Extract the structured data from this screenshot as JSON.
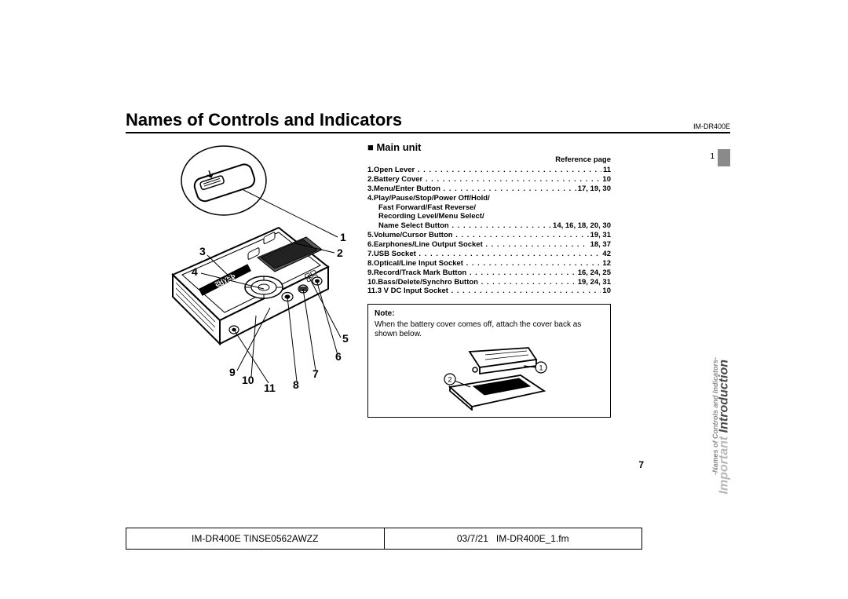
{
  "header": {
    "title": "Names of Controls and Indicators",
    "model": "IM-DR400E"
  },
  "main": {
    "subhead": "Main unit",
    "ref_label": "Reference page",
    "items": [
      {
        "n": "1.",
        "label": "Open Lever",
        "pg": "11"
      },
      {
        "n": "2.",
        "label": "Battery Cover",
        "pg": "10"
      },
      {
        "n": "3.",
        "label": "Menu/Enter Button",
        "pg": "17, 19, 30"
      },
      {
        "n": "4.",
        "label": "Play/Pause/Stop/Power Off/Hold/",
        "pg": ""
      },
      {
        "n": "",
        "label": "Fast Forward/Fast Reverse/",
        "pg": "",
        "cont": true
      },
      {
        "n": "",
        "label": "Recording Level/Menu Select/",
        "pg": "",
        "cont": true
      },
      {
        "n": "",
        "label": "Name Select Button",
        "pg": "14, 16, 18, 20, 30",
        "cont": true
      },
      {
        "n": "5.",
        "label": "Volume/Cursor Button",
        "pg": "19, 31"
      },
      {
        "n": "6.",
        "label": "Earphones/Line Output Socket",
        "pg": "18, 37"
      },
      {
        "n": "7.",
        "label": "USB  Socket",
        "pg": "42"
      },
      {
        "n": "8.",
        "label": "Optical/Line Input Socket",
        "pg": "12"
      },
      {
        "n": "9.",
        "label": "Record/Track Mark Button",
        "pg": "16, 24, 25"
      },
      {
        "n": "10.",
        "label": "Bass/Delete/Synchro Button",
        "pg": "19, 24, 31"
      },
      {
        "n": "11.",
        "label": "3 V DC Input Socket",
        "pg": "10"
      }
    ],
    "note_title": "Note:",
    "note_text": "When the battery cover comes off, attach the cover back as shown below."
  },
  "side": {
    "tab_num": "1",
    "line1": "Important",
    "line2": "Introduction",
    "sub": "-Names of Controls and Indicators-"
  },
  "callouts": [
    "1",
    "2",
    "3",
    "4",
    "5",
    "6",
    "7",
    "8",
    "9",
    "10",
    "11"
  ],
  "page_number": "7",
  "footer": {
    "left": "IM-DR400E TINSE0562AWZZ",
    "date": "03/7/21",
    "file": "IM-DR400E_1.fm"
  },
  "note_callouts": [
    "1",
    "2"
  ]
}
